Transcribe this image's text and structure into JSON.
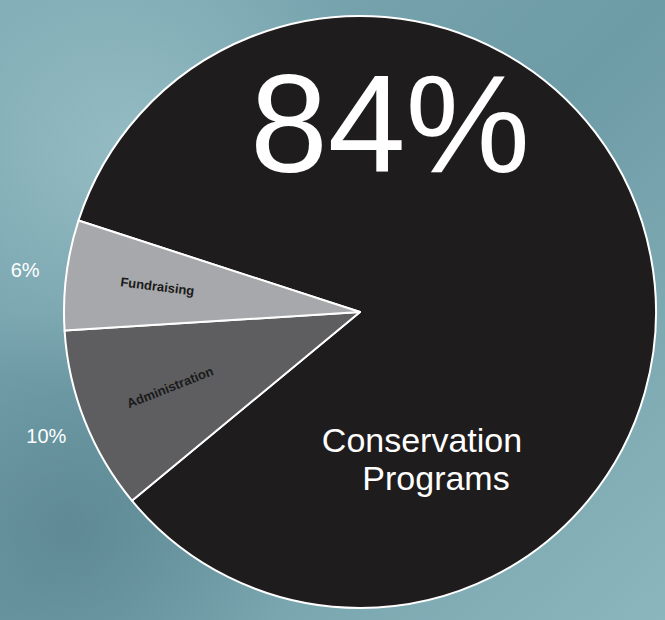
{
  "chart_data": {
    "type": "pie",
    "categories": [
      "Conservation Programs",
      "Administration",
      "Fundraising"
    ],
    "values": [
      84,
      10,
      6
    ],
    "value_labels": [
      "84%",
      "10%",
      "6%"
    ],
    "colors": [
      "#1e1c1d",
      "#5e5e60",
      "#a7a8ab"
    ],
    "data_labels": true
  }
}
